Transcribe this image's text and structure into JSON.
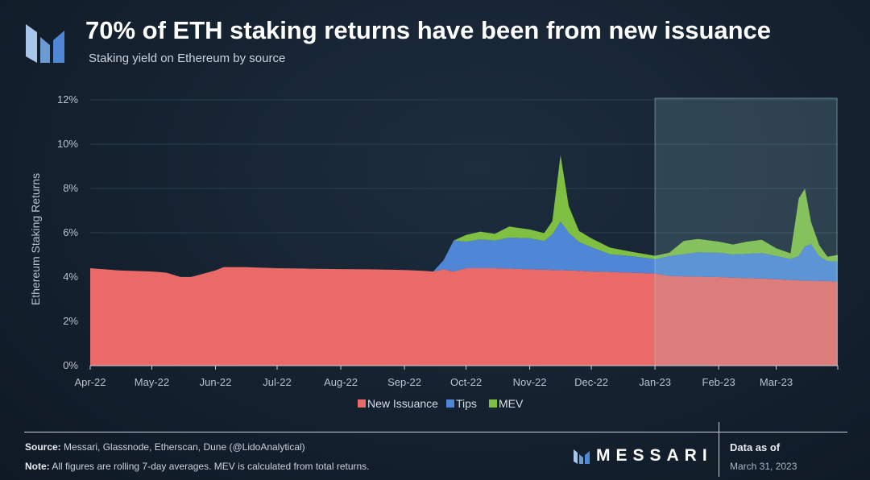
{
  "header": {
    "title": "70% of ETH staking returns have been from new issuance",
    "subtitle": "Staking yield on Ethereum by source"
  },
  "footer": {
    "source_label": "Source:",
    "source_text": "Messari, Glassnode, Etherscan, Dune (@LidoAnalytical)",
    "note_label": "Note:",
    "note_text": "All figures are rolling 7-day averages. MEV is calculated from total returns.",
    "brand": "MESSARI",
    "asof_label": "Data as of",
    "asof_date": "March 31, 2023"
  },
  "chart_data": {
    "type": "area",
    "stacked": true,
    "ylabel": "Ethereum Staking Returns",
    "xlabel": "",
    "ylim": [
      0,
      12
    ],
    "yticks": [
      "0%",
      "2%",
      "4%",
      "6%",
      "8%",
      "10%",
      "12%"
    ],
    "x_tick_labels": [
      "Apr-22",
      "May-22",
      "Jun-22",
      "Jul-22",
      "Aug-22",
      "Sep-22",
      "Oct-22",
      "Nov-22",
      "Dec-22",
      "Jan-23",
      "Feb-23",
      "Mar-23"
    ],
    "legend_position": "bottom",
    "grid": true,
    "highlight_range": [
      "Jan-23",
      "Mar-31-23"
    ],
    "colors": {
      "New Issuance": "#e96a67",
      "Tips": "#4f87d6",
      "MEV": "#7fbf42",
      "highlight": "#9fd0d6"
    },
    "x": [
      "2022-04-01",
      "2022-04-15",
      "2022-05-01",
      "2022-05-08",
      "2022-05-15",
      "2022-05-20",
      "2022-06-01",
      "2022-06-05",
      "2022-06-15",
      "2022-07-01",
      "2022-07-15",
      "2022-08-01",
      "2022-08-15",
      "2022-09-01",
      "2022-09-10",
      "2022-09-15",
      "2022-09-20",
      "2022-09-25",
      "2022-10-01",
      "2022-10-08",
      "2022-10-15",
      "2022-10-22",
      "2022-11-01",
      "2022-11-08",
      "2022-11-12",
      "2022-11-16",
      "2022-11-20",
      "2022-11-25",
      "2022-12-01",
      "2022-12-10",
      "2022-12-20",
      "2023-01-01",
      "2023-01-08",
      "2023-01-15",
      "2023-01-22",
      "2023-02-01",
      "2023-02-08",
      "2023-02-15",
      "2023-02-22",
      "2023-03-01",
      "2023-03-08",
      "2023-03-12",
      "2023-03-15",
      "2023-03-18",
      "2023-03-22",
      "2023-03-26",
      "2023-03-31"
    ],
    "series": [
      {
        "name": "New Issuance",
        "values": [
          4.4,
          4.3,
          4.25,
          4.2,
          4.0,
          4.0,
          4.3,
          4.45,
          4.45,
          4.4,
          4.38,
          4.36,
          4.35,
          4.32,
          4.28,
          4.25,
          4.35,
          4.25,
          4.4,
          4.4,
          4.4,
          4.38,
          4.35,
          4.33,
          4.32,
          4.31,
          4.3,
          4.28,
          4.25,
          4.23,
          4.2,
          4.16,
          4.05,
          4.03,
          4.02,
          4.0,
          3.97,
          3.95,
          3.93,
          3.9,
          3.87,
          3.85,
          3.84,
          3.83,
          3.83,
          3.82,
          3.8
        ]
      },
      {
        "name": "Tips",
        "values": [
          0,
          0,
          0,
          0,
          0,
          0,
          0,
          0,
          0,
          0,
          0,
          0,
          0,
          0,
          0,
          0,
          0.4,
          1.4,
          1.2,
          1.3,
          1.25,
          1.4,
          1.4,
          1.3,
          1.6,
          2.2,
          1.7,
          1.3,
          1.1,
          0.8,
          0.75,
          0.65,
          0.9,
          1.0,
          1.1,
          1.1,
          1.05,
          1.1,
          1.15,
          1.05,
          0.95,
          1.1,
          1.55,
          1.65,
          1.1,
          0.9,
          0.9
        ]
      },
      {
        "name": "MEV",
        "values": [
          0,
          0,
          0,
          0,
          0,
          0,
          0,
          0,
          0,
          0,
          0,
          0,
          0,
          0,
          0,
          0,
          0,
          0,
          0.3,
          0.35,
          0.3,
          0.5,
          0.4,
          0.35,
          0.6,
          3.0,
          1.2,
          0.5,
          0.4,
          0.3,
          0.2,
          0.15,
          0.15,
          0.6,
          0.6,
          0.5,
          0.45,
          0.55,
          0.6,
          0.35,
          0.25,
          2.6,
          2.6,
          1.0,
          0.5,
          0.2,
          0.3
        ]
      }
    ]
  }
}
